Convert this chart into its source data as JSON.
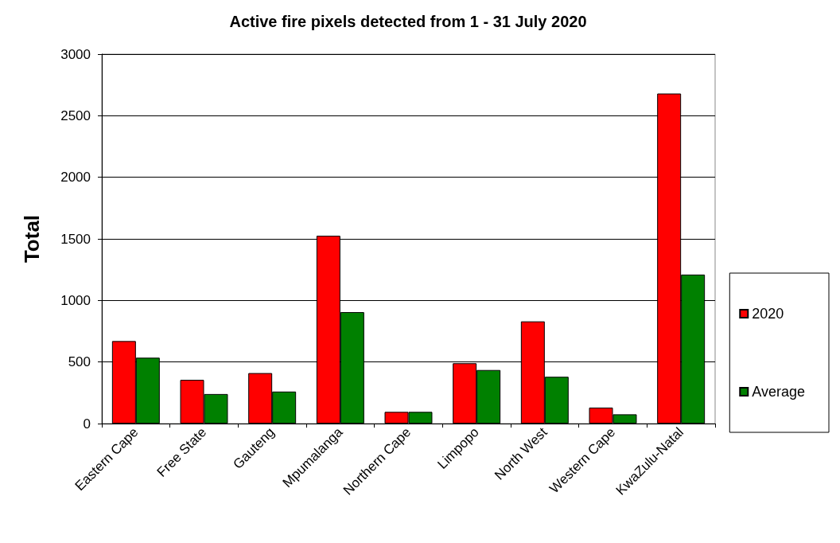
{
  "chart_data": {
    "type": "bar",
    "title": "Active fire pixels detected from 1 - 31 July 2020",
    "ylabel": "Total",
    "categories": [
      "Eastern Cape",
      "Free State",
      "Gauteng",
      "Mpumalanga",
      "Northern Cape",
      "Limpopo",
      "North West",
      "Western Cape",
      "KwaZulu-Natal"
    ],
    "series": [
      {
        "name": "2020",
        "color": "#ff0000",
        "values": [
          670,
          355,
          410,
          1525,
          95,
          490,
          830,
          130,
          2680
        ]
      },
      {
        "name": "Average",
        "color": "#008000",
        "values": [
          535,
          240,
          260,
          905,
          95,
          435,
          380,
          75,
          1210
        ]
      }
    ],
    "ylim": [
      0,
      3000
    ],
    "yticks": [
      0,
      500,
      1000,
      1500,
      2000,
      2500,
      3000
    ],
    "grid": "y",
    "legend": "right"
  }
}
